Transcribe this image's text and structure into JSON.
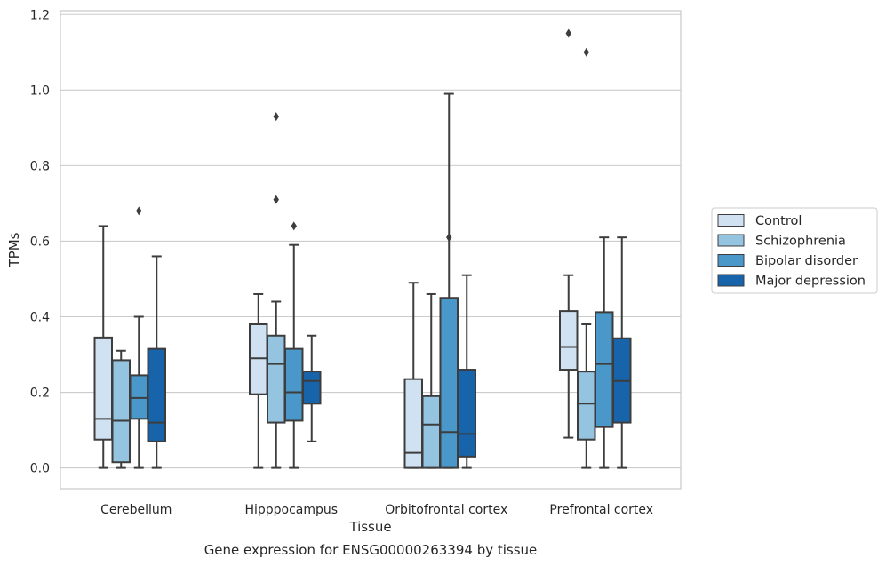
{
  "caption": "Gene expression for ENSG00000263394 by tissue",
  "chart_data": {
    "type": "boxplot",
    "xlabel": "Tissue",
    "ylabel": "TPMs",
    "ylim": [
      -0.055,
      1.21
    ],
    "yticks": [
      0.0,
      0.2,
      0.4,
      0.6,
      0.8,
      1.0,
      1.2
    ],
    "ytick_labels": [
      "0.0",
      "0.2",
      "0.4",
      "0.6",
      "0.8",
      "1.0",
      "1.2"
    ],
    "grid": "horizontal",
    "legend_position": "right",
    "categories": [
      "Cerebellum",
      "Hipppocampus",
      "Orbitofrontal cortex",
      "Prefrontal cortex"
    ],
    "series": [
      {
        "name": "Control",
        "color": "#d0e1f2",
        "boxes": [
          {
            "whisker_low": 0.0,
            "q1": 0.075,
            "median": 0.13,
            "q3": 0.345,
            "whisker_high": 0.64,
            "outliers": []
          },
          {
            "whisker_low": 0.0,
            "q1": 0.195,
            "median": 0.29,
            "q3": 0.38,
            "whisker_high": 0.46,
            "outliers": []
          },
          {
            "whisker_low": 0.0,
            "q1": 0.0,
            "median": 0.04,
            "q3": 0.235,
            "whisker_high": 0.49,
            "outliers": []
          },
          {
            "whisker_low": 0.08,
            "q1": 0.26,
            "median": 0.32,
            "q3": 0.415,
            "whisker_high": 0.51,
            "outliers": [
              1.15
            ]
          }
        ]
      },
      {
        "name": "Schizophrenia",
        "color": "#94c4df",
        "boxes": [
          {
            "whisker_low": 0.0,
            "q1": 0.015,
            "median": 0.125,
            "q3": 0.285,
            "whisker_high": 0.31,
            "outliers": []
          },
          {
            "whisker_low": 0.0,
            "q1": 0.12,
            "median": 0.275,
            "q3": 0.35,
            "whisker_high": 0.44,
            "outliers": [
              0.71,
              0.93
            ]
          },
          {
            "whisker_low": 0.0,
            "q1": 0.0,
            "median": 0.115,
            "q3": 0.19,
            "whisker_high": 0.46,
            "outliers": []
          },
          {
            "whisker_low": 0.0,
            "q1": 0.075,
            "median": 0.17,
            "q3": 0.255,
            "whisker_high": 0.38,
            "outliers": [
              1.1
            ]
          }
        ]
      },
      {
        "name": "Bipolar disorder",
        "color": "#4a98c9",
        "boxes": [
          {
            "whisker_low": 0.0,
            "q1": 0.13,
            "median": 0.185,
            "q3": 0.245,
            "whisker_high": 0.4,
            "outliers": [
              0.68
            ]
          },
          {
            "whisker_low": 0.0,
            "q1": 0.125,
            "median": 0.2,
            "q3": 0.315,
            "whisker_high": 0.59,
            "outliers": [
              0.64
            ]
          },
          {
            "whisker_low": 0.0,
            "q1": 0.0,
            "median": 0.095,
            "q3": 0.45,
            "whisker_high": 0.99,
            "outliers": [
              0.61
            ]
          },
          {
            "whisker_low": 0.0,
            "q1": 0.108,
            "median": 0.275,
            "q3": 0.412,
            "whisker_high": 0.61,
            "outliers": []
          }
        ]
      },
      {
        "name": "Major depression",
        "color": "#1764ab",
        "boxes": [
          {
            "whisker_low": 0.0,
            "q1": 0.07,
            "median": 0.12,
            "q3": 0.315,
            "whisker_high": 0.56,
            "outliers": []
          },
          {
            "whisker_low": 0.07,
            "q1": 0.17,
            "median": 0.23,
            "q3": 0.255,
            "whisker_high": 0.35,
            "outliers": []
          },
          {
            "whisker_low": 0.0,
            "q1": 0.03,
            "median": 0.09,
            "q3": 0.26,
            "whisker_high": 0.51,
            "outliers": []
          },
          {
            "whisker_low": 0.0,
            "q1": 0.12,
            "median": 0.23,
            "q3": 0.343,
            "whisker_high": 0.61,
            "outliers": []
          }
        ]
      }
    ]
  }
}
